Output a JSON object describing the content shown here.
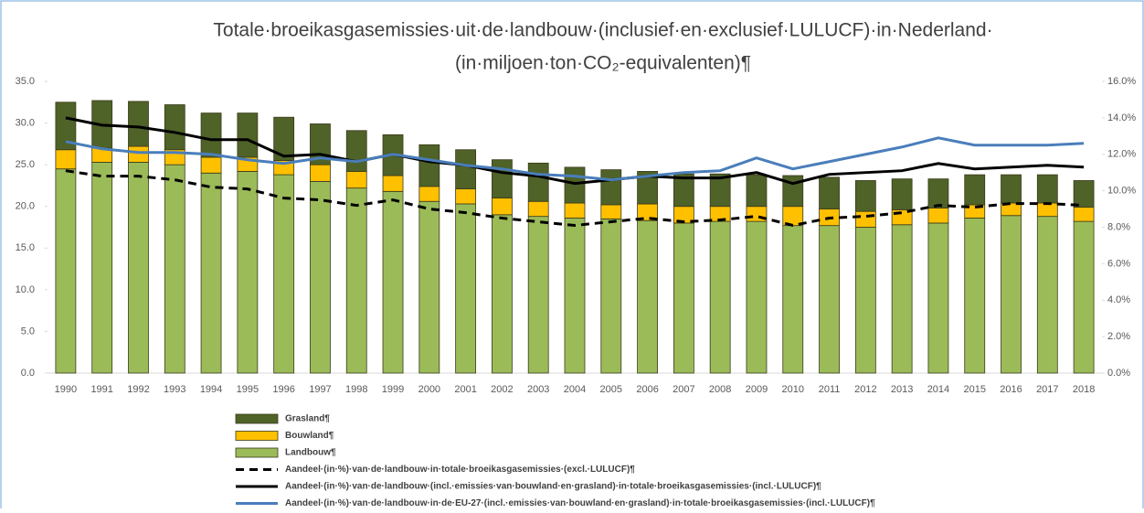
{
  "chart_data": {
    "type": "bar",
    "title": "Totale·broeikasgasemissies·uit·de·landbouw·(inclusief·en·exclusief·LULUCF)·in·Nederland·",
    "subtitle": "(in·miljoen·ton·CO₂-equivalenten)¶",
    "categories": [
      "1990",
      "1991",
      "1992",
      "1993",
      "1994",
      "1995",
      "1996",
      "1997",
      "1998",
      "1999",
      "2000",
      "2001",
      "2002",
      "2003",
      "2004",
      "2005",
      "2006",
      "2007",
      "2008",
      "2009",
      "2010",
      "2011",
      "2012",
      "2013",
      "2014",
      "2015",
      "2016",
      "2017",
      "2018"
    ],
    "ylim": [
      0,
      35
    ],
    "yticks": [
      {
        "value": 0,
        "label": "0.0"
      },
      {
        "value": 5,
        "label": "5.0"
      },
      {
        "value": 10,
        "label": "10.0"
      },
      {
        "value": 15,
        "label": "15.0"
      },
      {
        "value": 20,
        "label": "20.0"
      },
      {
        "value": 25,
        "label": "25.0"
      },
      {
        "value": 30,
        "label": "30.0"
      },
      {
        "value": 35,
        "label": "35.0"
      }
    ],
    "y2lim": [
      0,
      16
    ],
    "y2ticks": [
      {
        "value": 0,
        "label": "0.0%"
      },
      {
        "value": 2,
        "label": "2.0%"
      },
      {
        "value": 4,
        "label": "4.0%"
      },
      {
        "value": 6,
        "label": "6.0%"
      },
      {
        "value": 8,
        "label": "8.0%"
      },
      {
        "value": 10,
        "label": "10.0%"
      },
      {
        "value": 12,
        "label": "12.0%"
      },
      {
        "value": 14,
        "label": "14.0%"
      },
      {
        "value": 16,
        "label": "16.0%"
      }
    ],
    "series": [
      {
        "name": "Landbouw¶",
        "type": "bar",
        "color": "#9bbb59",
        "values": [
          24.5,
          25.3,
          25.3,
          25.0,
          24.0,
          24.2,
          23.8,
          23.0,
          22.2,
          21.8,
          20.6,
          20.3,
          19.0,
          18.8,
          18.6,
          18.5,
          18.3,
          18.0,
          18.2,
          18.2,
          17.7,
          17.7,
          17.5,
          17.8,
          18.0,
          18.6,
          18.9,
          18.8,
          18.2
        ]
      },
      {
        "name": "Bouwland¶",
        "type": "bar",
        "color": "#ffc000",
        "values": [
          2.3,
          1.7,
          1.9,
          1.8,
          1.9,
          1.7,
          1.7,
          2.0,
          2.0,
          1.9,
          1.8,
          1.8,
          2.0,
          1.8,
          1.8,
          1.7,
          2.0,
          2.0,
          1.8,
          1.8,
          2.3,
          2.0,
          1.9,
          1.8,
          1.8,
          1.6,
          1.5,
          1.6,
          1.7
        ]
      },
      {
        "name": "Grasland¶",
        "type": "bar",
        "color": "#4f6228",
        "values": [
          5.7,
          5.7,
          5.4,
          5.4,
          5.3,
          5.3,
          5.2,
          4.9,
          4.9,
          4.9,
          5.0,
          4.7,
          4.6,
          4.6,
          4.3,
          4.2,
          3.9,
          3.9,
          3.9,
          3.8,
          3.7,
          3.8,
          3.7,
          3.7,
          3.5,
          3.6,
          3.4,
          3.4,
          3.2
        ]
      },
      {
        "name": "Aandeel·(in·%)·van·de·landbouw·in·totale·broeikasgasemissies·(excl.·LULUCF)¶",
        "type": "line",
        "axis": "y2",
        "dashed": true,
        "color": "#000000",
        "values": [
          11.1,
          10.8,
          10.8,
          10.6,
          10.2,
          10.1,
          9.6,
          9.5,
          9.2,
          9.5,
          9.0,
          8.8,
          8.5,
          8.3,
          8.1,
          8.3,
          8.5,
          8.3,
          8.4,
          8.6,
          8.1,
          8.5,
          8.6,
          8.8,
          9.2,
          9.1,
          9.3,
          9.3,
          9.2
        ]
      },
      {
        "name": "Aandeel·(in·%)·van·de·landbouw·(incl.·emissies·van·bouwland·en·grasland)·in·totale·broeikasgasemissies·(incl.·LULUCF)¶",
        "type": "line",
        "axis": "y2",
        "dashed": false,
        "color": "#000000",
        "values": [
          14.0,
          13.6,
          13.5,
          13.2,
          12.8,
          12.8,
          11.9,
          12.0,
          11.6,
          12.0,
          11.6,
          11.4,
          11.0,
          10.8,
          10.4,
          10.6,
          10.8,
          10.7,
          10.7,
          11.0,
          10.4,
          10.9,
          11.0,
          11.1,
          11.5,
          11.2,
          11.3,
          11.4,
          11.3
        ]
      },
      {
        "name": "Aandeel·(in·%)·van·de·landbouw·in·de·EU-27·(incl.·emissies·van·bouwland·en·grasland)·in·totale·broeikasgasemissies·(incl.·LULUCF)¶",
        "type": "line",
        "axis": "y2",
        "dashed": false,
        "color": "#4a7ebb",
        "values": [
          12.7,
          12.3,
          12.1,
          12.1,
          12.0,
          11.7,
          11.5,
          11.8,
          11.6,
          12.0,
          11.7,
          11.4,
          11.2,
          10.9,
          10.8,
          10.6,
          10.8,
          11.0,
          11.1,
          11.8,
          11.2,
          11.6,
          12.0,
          12.4,
          12.9,
          12.5,
          12.5,
          12.5,
          12.6
        ]
      }
    ],
    "legend_order": [
      2,
      1,
      0,
      3,
      4,
      5
    ]
  }
}
